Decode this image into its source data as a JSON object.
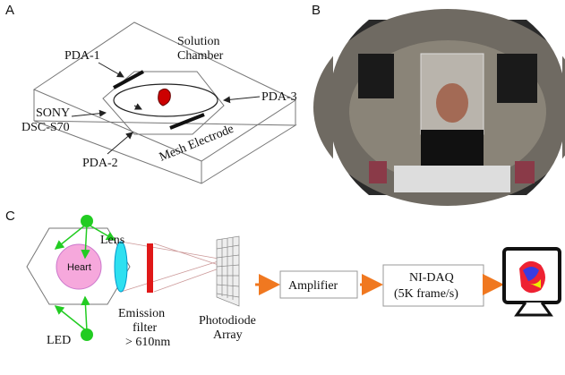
{
  "panel_labels": [
    "A",
    "B",
    "C"
  ],
  "panel_a": {
    "pda_1": "PDA-1",
    "chamber": [
      "Solution",
      "Chamber"
    ],
    "pda_3": "PDA-3",
    "camera": [
      "SONY",
      "DSC-S70"
    ],
    "pda_2": "PDA-2",
    "electrode": "Mesh Electrode"
  },
  "panel_c": {
    "lens": "Lens",
    "heart": "Heart",
    "led": "LED",
    "filter": [
      "Emission",
      "filter",
      "> 610nm"
    ],
    "array": [
      "Photodiode",
      "Array"
    ],
    "amplifier": "Amplifier",
    "daq": [
      "NI-DAQ",
      "(5K frame/s)"
    ]
  }
}
